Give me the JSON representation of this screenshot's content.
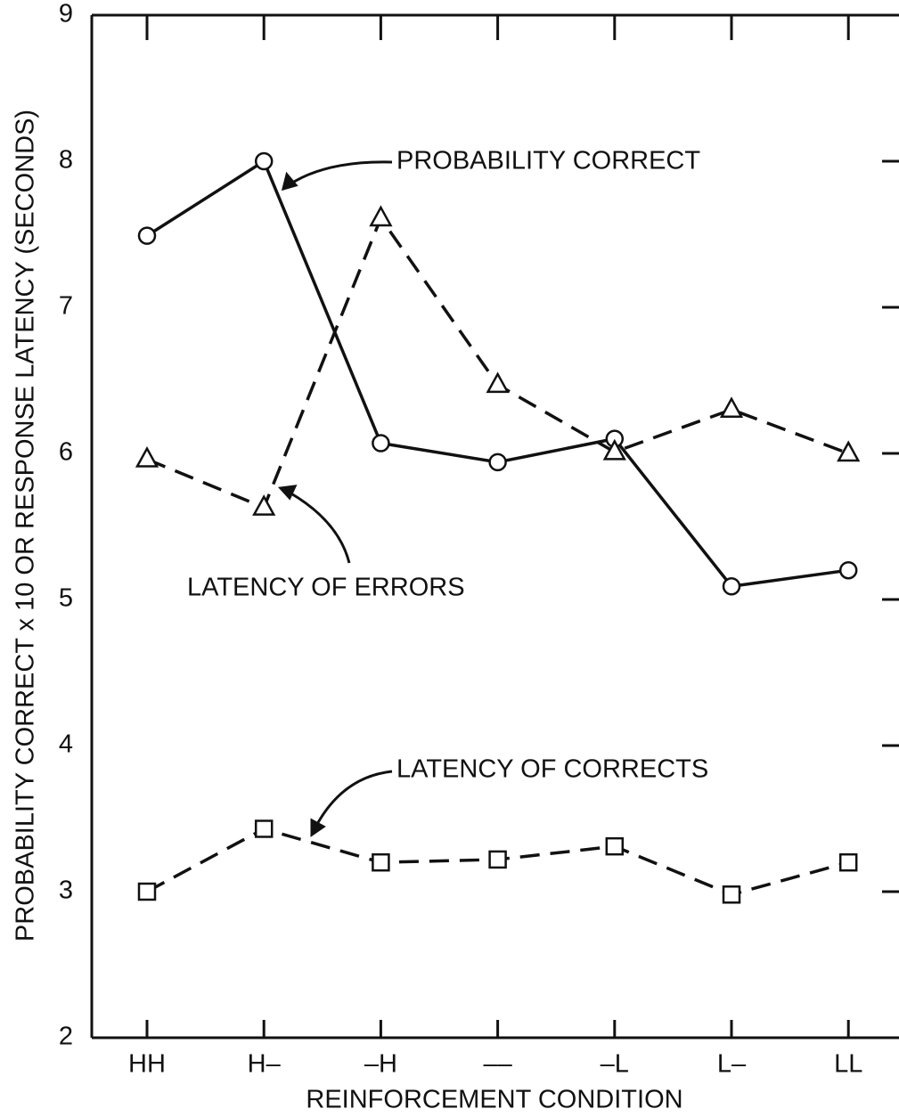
{
  "chart_data": {
    "type": "line",
    "x_label": "REINFORCEMENT CONDITION",
    "y_label": "PROBABILITY CORRECT x 10 OR RESPONSE LATENCY (SECONDS)",
    "categories": [
      "HH",
      "H–",
      "–H",
      "––",
      "–L",
      "L–",
      "LL"
    ],
    "ylim": [
      2,
      9
    ],
    "yticks": [
      2,
      3,
      4,
      5,
      6,
      7,
      8,
      9
    ],
    "series": [
      {
        "name": "PROBABILITY CORRECT",
        "color": "#111111",
        "marker": "circle",
        "line_style": "solid",
        "values": [
          7.49,
          8.0,
          6.07,
          5.94,
          6.1,
          5.09,
          5.2
        ]
      },
      {
        "name": "LATENCY OF ERRORS",
        "color": "#111111",
        "marker": "triangle",
        "line_style": "dashed",
        "values": [
          5.96,
          5.63,
          7.61,
          6.47,
          6.01,
          6.3,
          6.0
        ]
      },
      {
        "name": "LATENCY OF CORRECTS",
        "color": "#111111",
        "marker": "square",
        "line_style": "dashed",
        "values": [
          3.0,
          3.43,
          3.2,
          3.22,
          3.31,
          2.98,
          3.2
        ]
      }
    ]
  }
}
